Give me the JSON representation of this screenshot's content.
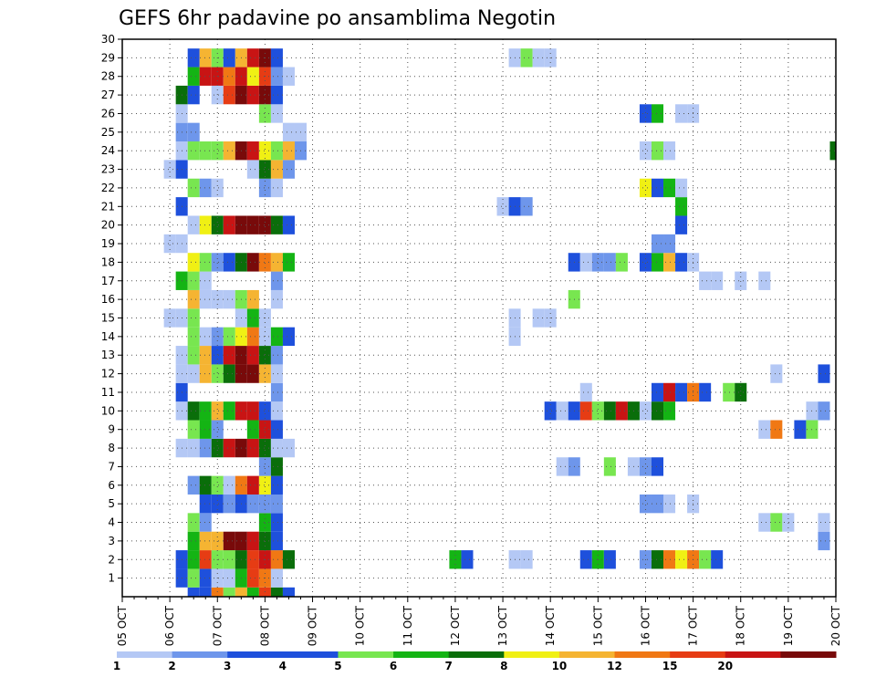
{
  "chart_data": {
    "type": "heatmap",
    "title": "GEFS 6hr padavine po ansamblima Negotin",
    "x_tick_labels": [
      "05 OCT",
      "06 OCT",
      "07 OCT",
      "08 OCT",
      "09 OCT",
      "10 OCT",
      "11 OCT",
      "12 OCT",
      "13 OCT",
      "14 OCT",
      "15 OCT",
      "16 OCT",
      "17 OCT",
      "18 OCT",
      "19 OCT",
      "20 OCT"
    ],
    "y_tick_labels": [
      "1",
      "2",
      "3",
      "4",
      "5",
      "6",
      "7",
      "8",
      "9",
      "10",
      "11",
      "12",
      "13",
      "14",
      "15",
      "16",
      "17",
      "18",
      "19",
      "20",
      "21",
      "22",
      "23",
      "24",
      "25",
      "26",
      "27",
      "28",
      "29",
      "30"
    ],
    "x_range": [
      0,
      60
    ],
    "y_range": [
      0,
      30
    ],
    "grid": true,
    "legend": {
      "placement": "bottom",
      "colors": [
        "#b4c8f5",
        "#6e96eb",
        "#1e50dc",
        "#1e50dc",
        "#78e650",
        "#14b414",
        "#0a6e0a",
        "#f0f014",
        "#f5b432",
        "#f07814",
        "#e63c14",
        "#c81414",
        "#780a0a"
      ],
      "labels": [
        "1",
        "2",
        "3",
        "4",
        "5",
        "6",
        "7",
        "8",
        "10",
        "12",
        "15",
        "20"
      ]
    },
    "cells": [
      [
        6,
        0,
        3
      ],
      [
        7,
        0,
        3
      ],
      [
        8,
        0,
        10
      ],
      [
        9,
        0,
        5
      ],
      [
        10,
        0,
        9
      ],
      [
        11,
        0,
        6
      ],
      [
        12,
        0,
        11
      ],
      [
        13,
        0,
        7
      ],
      [
        14,
        0,
        4
      ],
      [
        5,
        1,
        4
      ],
      [
        6,
        1,
        5
      ],
      [
        7,
        1,
        3
      ],
      [
        8,
        1,
        1
      ],
      [
        9,
        1,
        1
      ],
      [
        10,
        1,
        6
      ],
      [
        11,
        1,
        11
      ],
      [
        12,
        1,
        10
      ],
      [
        13,
        1,
        1
      ],
      [
        5,
        2,
        3
      ],
      [
        6,
        2,
        6
      ],
      [
        7,
        2,
        11
      ],
      [
        8,
        2,
        5
      ],
      [
        9,
        2,
        5
      ],
      [
        10,
        2,
        7
      ],
      [
        11,
        2,
        11
      ],
      [
        12,
        2,
        12
      ],
      [
        13,
        2,
        10
      ],
      [
        14,
        2,
        7
      ],
      [
        28,
        2,
        6
      ],
      [
        29,
        2,
        4
      ],
      [
        33,
        2,
        1
      ],
      [
        34,
        2,
        1
      ],
      [
        39,
        2,
        3
      ],
      [
        40,
        2,
        6
      ],
      [
        41,
        2,
        4
      ],
      [
        44,
        2,
        2
      ],
      [
        45,
        2,
        7
      ],
      [
        46,
        2,
        10
      ],
      [
        47,
        2,
        8
      ],
      [
        48,
        2,
        10
      ],
      [
        49,
        2,
        5
      ],
      [
        50,
        2,
        4
      ],
      [
        6,
        3,
        6
      ],
      [
        7,
        3,
        9
      ],
      [
        8,
        3,
        9
      ],
      [
        9,
        3,
        13
      ],
      [
        10,
        3,
        13
      ],
      [
        11,
        3,
        12
      ],
      [
        12,
        3,
        7
      ],
      [
        13,
        3,
        4
      ],
      [
        59,
        3,
        2
      ],
      [
        6,
        4,
        5
      ],
      [
        7,
        4,
        2
      ],
      [
        12,
        4,
        6
      ],
      [
        13,
        4,
        4
      ],
      [
        54,
        4,
        1
      ],
      [
        55,
        4,
        5
      ],
      [
        56,
        4,
        1
      ],
      [
        59,
        4,
        1
      ],
      [
        7,
        5,
        3
      ],
      [
        8,
        5,
        3
      ],
      [
        9,
        5,
        2
      ],
      [
        10,
        5,
        3
      ],
      [
        11,
        5,
        2
      ],
      [
        12,
        5,
        2
      ],
      [
        13,
        5,
        2
      ],
      [
        44,
        5,
        2
      ],
      [
        45,
        5,
        2
      ],
      [
        46,
        5,
        1
      ],
      [
        48,
        5,
        1
      ],
      [
        6,
        6,
        2
      ],
      [
        7,
        6,
        7
      ],
      [
        8,
        6,
        5
      ],
      [
        9,
        6,
        1
      ],
      [
        10,
        6,
        10
      ],
      [
        11,
        6,
        12
      ],
      [
        12,
        6,
        8
      ],
      [
        13,
        6,
        3
      ],
      [
        12,
        7,
        2
      ],
      [
        13,
        7,
        7
      ],
      [
        37,
        7,
        1
      ],
      [
        38,
        7,
        2
      ],
      [
        41,
        7,
        5
      ],
      [
        43,
        7,
        1
      ],
      [
        44,
        7,
        2
      ],
      [
        45,
        7,
        3
      ],
      [
        5,
        8,
        1
      ],
      [
        6,
        8,
        1
      ],
      [
        7,
        8,
        2
      ],
      [
        8,
        8,
        7
      ],
      [
        9,
        8,
        12
      ],
      [
        10,
        8,
        13
      ],
      [
        11,
        8,
        12
      ],
      [
        12,
        8,
        7
      ],
      [
        13,
        8,
        1
      ],
      [
        14,
        8,
        1
      ],
      [
        6,
        9,
        5
      ],
      [
        7,
        9,
        6
      ],
      [
        8,
        9,
        2
      ],
      [
        11,
        9,
        6
      ],
      [
        12,
        9,
        12
      ],
      [
        13,
        9,
        3
      ],
      [
        54,
        9,
        1
      ],
      [
        55,
        9,
        10
      ],
      [
        57,
        9,
        3
      ],
      [
        58,
        9,
        5
      ],
      [
        5,
        10,
        1
      ],
      [
        6,
        10,
        7
      ],
      [
        7,
        10,
        6
      ],
      [
        8,
        10,
        9
      ],
      [
        9,
        10,
        6
      ],
      [
        10,
        10,
        12
      ],
      [
        11,
        10,
        12
      ],
      [
        12,
        10,
        3
      ],
      [
        13,
        10,
        1
      ],
      [
        36,
        10,
        3
      ],
      [
        37,
        10,
        1
      ],
      [
        38,
        10,
        3
      ],
      [
        39,
        10,
        11
      ],
      [
        40,
        10,
        5
      ],
      [
        41,
        10,
        7
      ],
      [
        42,
        10,
        12
      ],
      [
        43,
        10,
        7
      ],
      [
        44,
        10,
        1
      ],
      [
        45,
        10,
        7
      ],
      [
        46,
        10,
        6
      ],
      [
        58,
        10,
        1
      ],
      [
        59,
        10,
        2
      ],
      [
        5,
        11,
        3
      ],
      [
        13,
        11,
        2
      ],
      [
        39,
        11,
        1
      ],
      [
        45,
        11,
        3
      ],
      [
        46,
        11,
        12
      ],
      [
        47,
        11,
        3
      ],
      [
        48,
        11,
        10
      ],
      [
        49,
        11,
        3
      ],
      [
        51,
        11,
        5
      ],
      [
        52,
        11,
        7
      ],
      [
        5,
        12,
        1
      ],
      [
        6,
        12,
        1
      ],
      [
        7,
        12,
        9
      ],
      [
        8,
        12,
        5
      ],
      [
        9,
        12,
        7
      ],
      [
        10,
        12,
        13
      ],
      [
        11,
        12,
        13
      ],
      [
        12,
        12,
        9
      ],
      [
        13,
        12,
        1
      ],
      [
        55,
        12,
        1
      ],
      [
        59,
        12,
        3
      ],
      [
        5,
        13,
        1
      ],
      [
        6,
        13,
        5
      ],
      [
        7,
        13,
        9
      ],
      [
        8,
        13,
        3
      ],
      [
        9,
        13,
        12
      ],
      [
        10,
        13,
        13
      ],
      [
        11,
        13,
        12
      ],
      [
        12,
        13,
        7
      ],
      [
        13,
        13,
        2
      ],
      [
        6,
        14,
        5
      ],
      [
        7,
        14,
        1
      ],
      [
        8,
        14,
        2
      ],
      [
        9,
        14,
        5
      ],
      [
        10,
        14,
        8
      ],
      [
        11,
        14,
        10
      ],
      [
        12,
        14,
        1
      ],
      [
        13,
        14,
        6
      ],
      [
        14,
        14,
        3
      ],
      [
        33,
        14,
        1
      ],
      [
        4,
        15,
        1
      ],
      [
        5,
        15,
        1
      ],
      [
        6,
        15,
        5
      ],
      [
        10,
        15,
        1
      ],
      [
        11,
        15,
        6
      ],
      [
        12,
        15,
        1
      ],
      [
        33,
        15,
        1
      ],
      [
        35,
        15,
        1
      ],
      [
        36,
        15,
        1
      ],
      [
        6,
        16,
        9
      ],
      [
        7,
        16,
        1
      ],
      [
        8,
        16,
        1
      ],
      [
        9,
        16,
        1
      ],
      [
        10,
        16,
        5
      ],
      [
        11,
        16,
        9
      ],
      [
        13,
        16,
        1
      ],
      [
        38,
        16,
        5
      ],
      [
        5,
        17,
        6
      ],
      [
        6,
        17,
        5
      ],
      [
        7,
        17,
        1
      ],
      [
        13,
        17,
        2
      ],
      [
        49,
        17,
        1
      ],
      [
        50,
        17,
        1
      ],
      [
        52,
        17,
        1
      ],
      [
        54,
        17,
        1
      ],
      [
        6,
        18,
        8
      ],
      [
        7,
        18,
        5
      ],
      [
        8,
        18,
        2
      ],
      [
        9,
        18,
        3
      ],
      [
        10,
        18,
        7
      ],
      [
        11,
        18,
        13
      ],
      [
        12,
        18,
        10
      ],
      [
        13,
        18,
        9
      ],
      [
        14,
        18,
        6
      ],
      [
        38,
        18,
        3
      ],
      [
        39,
        18,
        1
      ],
      [
        40,
        18,
        2
      ],
      [
        41,
        18,
        2
      ],
      [
        42,
        18,
        5
      ],
      [
        44,
        18,
        3
      ],
      [
        45,
        18,
        6
      ],
      [
        46,
        18,
        9
      ],
      [
        47,
        18,
        3
      ],
      [
        48,
        18,
        1
      ],
      [
        4,
        19,
        1
      ],
      [
        5,
        19,
        1
      ],
      [
        45,
        19,
        2
      ],
      [
        46,
        19,
        2
      ],
      [
        6,
        20,
        1
      ],
      [
        7,
        20,
        8
      ],
      [
        8,
        20,
        7
      ],
      [
        9,
        20,
        12
      ],
      [
        10,
        20,
        13
      ],
      [
        11,
        20,
        13
      ],
      [
        12,
        20,
        13
      ],
      [
        13,
        20,
        7
      ],
      [
        14,
        20,
        3
      ],
      [
        47,
        20,
        3
      ],
      [
        5,
        21,
        3
      ],
      [
        32,
        21,
        1
      ],
      [
        33,
        21,
        3
      ],
      [
        34,
        21,
        2
      ],
      [
        47,
        21,
        6
      ],
      [
        6,
        22,
        5
      ],
      [
        7,
        22,
        2
      ],
      [
        8,
        22,
        1
      ],
      [
        12,
        22,
        2
      ],
      [
        13,
        22,
        1
      ],
      [
        44,
        22,
        8
      ],
      [
        45,
        22,
        3
      ],
      [
        46,
        22,
        6
      ],
      [
        47,
        22,
        1
      ],
      [
        4,
        23,
        1
      ],
      [
        5,
        23,
        3
      ],
      [
        11,
        23,
        1
      ],
      [
        12,
        23,
        7
      ],
      [
        13,
        23,
        9
      ],
      [
        14,
        23,
        2
      ],
      [
        5,
        24,
        1
      ],
      [
        6,
        24,
        5
      ],
      [
        7,
        24,
        5
      ],
      [
        8,
        24,
        5
      ],
      [
        9,
        24,
        9
      ],
      [
        10,
        24,
        13
      ],
      [
        11,
        24,
        12
      ],
      [
        12,
        24,
        8
      ],
      [
        13,
        24,
        5
      ],
      [
        14,
        24,
        9
      ],
      [
        15,
        24,
        2
      ],
      [
        44,
        24,
        1
      ],
      [
        45,
        24,
        5
      ],
      [
        46,
        24,
        1
      ],
      [
        60,
        24,
        7
      ],
      [
        5,
        25,
        2
      ],
      [
        6,
        25,
        2
      ],
      [
        14,
        25,
        1
      ],
      [
        15,
        25,
        1
      ],
      [
        5,
        26,
        1
      ],
      [
        12,
        26,
        5
      ],
      [
        13,
        26,
        1
      ],
      [
        44,
        26,
        3
      ],
      [
        45,
        26,
        6
      ],
      [
        47,
        26,
        1
      ],
      [
        48,
        26,
        1
      ],
      [
        5,
        27,
        7
      ],
      [
        6,
        27,
        3
      ],
      [
        8,
        27,
        1
      ],
      [
        9,
        27,
        11
      ],
      [
        10,
        27,
        13
      ],
      [
        11,
        27,
        12
      ],
      [
        12,
        27,
        13
      ],
      [
        13,
        27,
        3
      ],
      [
        6,
        28,
        6
      ],
      [
        7,
        28,
        12
      ],
      [
        8,
        28,
        12
      ],
      [
        9,
        28,
        10
      ],
      [
        10,
        28,
        12
      ],
      [
        11,
        28,
        8
      ],
      [
        12,
        28,
        11
      ],
      [
        13,
        28,
        2
      ],
      [
        14,
        28,
        1
      ],
      [
        6,
        29,
        3
      ],
      [
        7,
        29,
        9
      ],
      [
        8,
        29,
        5
      ],
      [
        9,
        29,
        3
      ],
      [
        10,
        29,
        9
      ],
      [
        11,
        29,
        12
      ],
      [
        12,
        29,
        13
      ],
      [
        13,
        29,
        3
      ],
      [
        33,
        29,
        1
      ],
      [
        34,
        29,
        5
      ],
      [
        35,
        29,
        1
      ],
      [
        36,
        29,
        1
      ]
    ]
  }
}
